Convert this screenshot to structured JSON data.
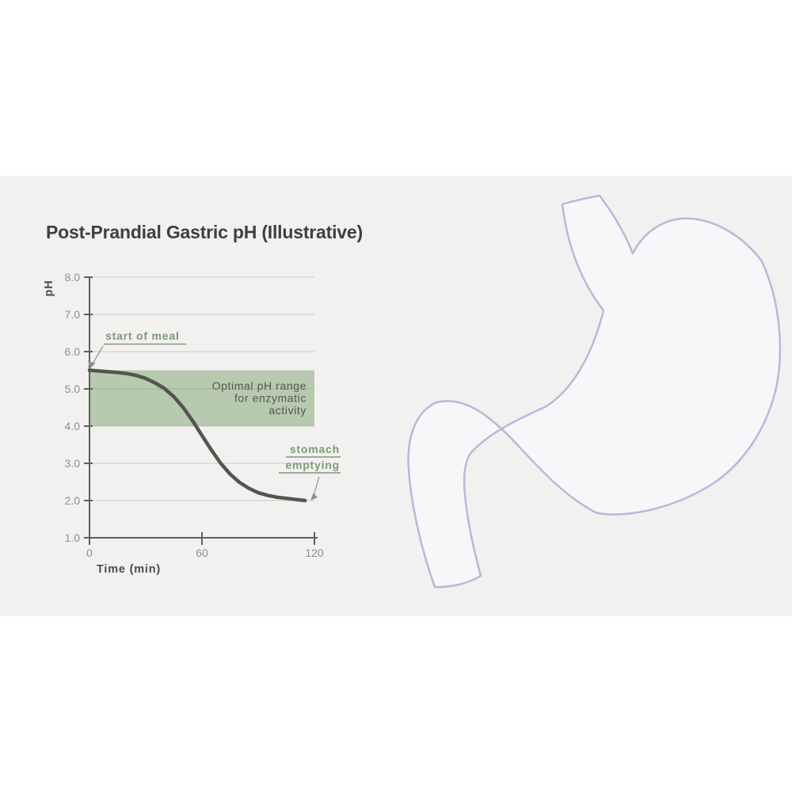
{
  "title": "Post-Prandial Gastric pH (Illustrative)",
  "chart_data": {
    "type": "line",
    "title": "Post-Prandial Gastric pH (Illustrative)",
    "xlabel": "Time (min)",
    "ylabel": "pH",
    "xlim": [
      0,
      122
    ],
    "ylim": [
      1.0,
      8.0
    ],
    "x_ticks": [
      0,
      60,
      120
    ],
    "x_tick_labels": [
      "0",
      "60",
      "120"
    ],
    "y_ticks": [
      8.0,
      7.0,
      6.0,
      5.0,
      4.0,
      3.0,
      2.0,
      1.0
    ],
    "y_tick_labels": [
      "8.0",
      "7.0",
      "6.0",
      "5.0",
      "4.0",
      "3.0",
      "2.0",
      "1.0"
    ],
    "grid": true,
    "legend": false,
    "line_color": "#545450",
    "annotation_color": "#7d9878",
    "leader_color": "#90908c",
    "series": [
      {
        "name": "gastric_ph_after_meal",
        "points": [
          [
            0,
            5.5
          ],
          [
            5,
            5.48
          ],
          [
            10,
            5.46
          ],
          [
            15,
            5.44
          ],
          [
            20,
            5.41
          ],
          [
            25,
            5.36
          ],
          [
            30,
            5.28
          ],
          [
            35,
            5.16
          ],
          [
            40,
            5.01
          ],
          [
            45,
            4.79
          ],
          [
            50,
            4.5
          ],
          [
            55,
            4.14
          ],
          [
            60,
            3.75
          ],
          [
            65,
            3.36
          ],
          [
            70,
            3.0
          ],
          [
            75,
            2.71
          ],
          [
            80,
            2.49
          ],
          [
            85,
            2.33
          ],
          [
            90,
            2.21
          ],
          [
            95,
            2.14
          ],
          [
            100,
            2.09
          ],
          [
            105,
            2.06
          ],
          [
            110,
            2.03
          ],
          [
            115,
            2.0
          ]
        ]
      }
    ],
    "band": {
      "y_from": 4.0,
      "y_to": 5.5,
      "color": "#6e985f",
      "opacity": 0.45,
      "label": "Optimal pH range for enzymatic activity",
      "label_lines": [
        "Optimal pH range",
        "for enzymatic",
        "activity"
      ]
    },
    "annotations": [
      {
        "name": "start-of-meal",
        "lines": [
          "start of meal"
        ],
        "target_x": 0,
        "target_y": 5.5
      },
      {
        "name": "stomach-emptying",
        "lines": [
          "stomach",
          "emptying"
        ],
        "target_x": 115,
        "target_y": 2.0
      }
    ]
  },
  "illustration": {
    "name": "stomach-outline",
    "stroke": "#b5b5da",
    "fill": "#f9f9fc"
  },
  "colors": {
    "page_bg": "#ffffff",
    "canvas_band": "#f2f1ef",
    "axis": "#5f5f5c",
    "grid": "#cbcac7",
    "tick_text": "#8f8f8c",
    "title_text": "#3f3f3d"
  }
}
